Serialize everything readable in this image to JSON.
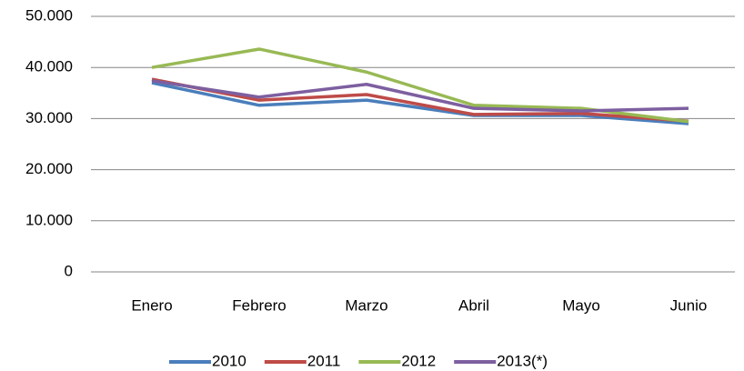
{
  "chart_data": {
    "type": "line",
    "categories": [
      "Enero",
      "Febrero",
      "Marzo",
      "Abril",
      "Mayo",
      "Junio"
    ],
    "series": [
      {
        "name": "2010",
        "color": "#4a7ebb",
        "values": [
          37000,
          32600,
          33600,
          30600,
          30600,
          29000
        ]
      },
      {
        "name": "2011",
        "color": "#be4b48",
        "values": [
          37700,
          33600,
          34700,
          30800,
          31000,
          29500
        ]
      },
      {
        "name": "2012",
        "color": "#98b954",
        "values": [
          40000,
          43600,
          39100,
          32600,
          32000,
          29400
        ]
      },
      {
        "name": "2013(*)",
        "color": "#7d5fa0",
        "values": [
          37400,
          34200,
          36700,
          32000,
          31500,
          32000
        ]
      }
    ],
    "ylim": [
      0,
      50000
    ],
    "yticks": [
      0,
      {
        "value": 10000,
        "label": "10.000"
      },
      {
        "value": 20000,
        "label": "20.000"
      },
      {
        "value": 30000,
        "label": "30.000"
      },
      {
        "value": 40000,
        "label": "40.000"
      },
      {
        "value": 50000,
        "label": "50.000"
      }
    ],
    "grid": true,
    "legend": "bottom"
  }
}
